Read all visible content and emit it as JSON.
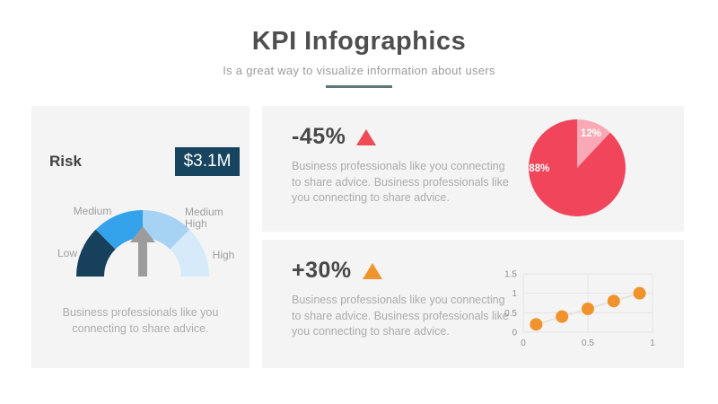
{
  "header": {
    "title": "KPI Infographics",
    "subtitle": "Is a great way to visualize information about users",
    "underline_color": "#5e7878"
  },
  "colors": {
    "panel_bg": "#f4f4f4",
    "heading_text": "#4e4e4e",
    "body_text": "#acacac",
    "kpi_value_text": "#474747"
  },
  "left_panel": {
    "title": "Risk",
    "badge": {
      "value": "$3.1M",
      "bg": "#17455f",
      "text_color": "#ffffff"
    },
    "description": "Business professionals like you connecting to share advice.",
    "gauge": {
      "labels": {
        "low": "Low",
        "medium": "Medium",
        "medium_high": "Medium High",
        "high": "High"
      },
      "segments": [
        {
          "label": "Low",
          "color": "#16405c"
        },
        {
          "label": "Medium",
          "color": "#35a2ec"
        },
        {
          "label": "Medium High",
          "color": "#a6d3f3"
        },
        {
          "label": "High",
          "color": "#d6eaf9"
        }
      ],
      "needle_color": "#9c9c9c"
    }
  },
  "kpi_top": {
    "value": "-45%",
    "trend_icon": "triangle-up",
    "trend_color": "#ee4b57",
    "description": "Business professionals like you connecting to share advice. Business professionals like you connecting to share advice."
  },
  "kpi_bottom": {
    "value": "+30%",
    "trend_icon": "triangle-up",
    "trend_color": "#f0932c",
    "description": "Business professionals like you connecting to share advice. Business professionals like you connecting to share advice."
  },
  "chart_data": [
    {
      "type": "pie",
      "start_angle_deg": 0,
      "direction": "clockwise",
      "label_color": "#ffffff",
      "slices": [
        {
          "label": "12%",
          "value": 12,
          "color": "#f9a9b5",
          "label_angle_deg": 21.6,
          "label_r_frac": 0.78
        },
        {
          "label": "88%",
          "value": 88,
          "color": "#f0455a",
          "label_angle_deg": 270,
          "label_r_frac": 0.78
        }
      ]
    },
    {
      "type": "scatter",
      "x": [
        0.1,
        0.3,
        0.5,
        0.7,
        0.9
      ],
      "y": [
        0.2,
        0.4,
        0.6,
        0.8,
        1.0
      ],
      "xlim": [
        0,
        1
      ],
      "ylim": [
        0,
        1.5
      ],
      "xticks": [
        "0",
        "0.5",
        "1"
      ],
      "xtick_values": [
        0,
        0.5,
        1
      ],
      "yticks": [
        "0",
        "0.5",
        "1",
        "1.5"
      ],
      "ytick_values": [
        0,
        0.5,
        1,
        1.5
      ],
      "grid": true,
      "grid_color": "#e4e4e4",
      "tick_color": "#909090",
      "point_color": "#f0932c",
      "trend_line_color": "#e8e2dc"
    }
  ]
}
